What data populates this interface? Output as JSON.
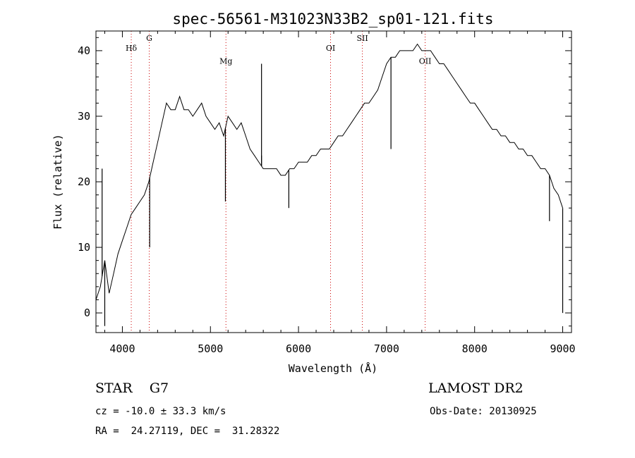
{
  "chart_data": {
    "type": "line",
    "title": "spec-56561-M31023N33B2_sp01-121.fits",
    "xlabel": "Wavelength (Å)",
    "ylabel": "Flux (relative)",
    "xlim": [
      3700,
      9100
    ],
    "ylim": [
      -3,
      43
    ],
    "xticks": [
      4000,
      5000,
      6000,
      7000,
      8000,
      9000
    ],
    "yticks": [
      0,
      10,
      20,
      30,
      40
    ],
    "grid": false,
    "series": [
      {
        "x": [
          3700,
          3750,
          3800,
          3850,
          3900,
          3950,
          4000,
          4050,
          4100,
          4150,
          4200,
          4250,
          4300,
          4350,
          4400,
          4450,
          4500,
          4550,
          4600,
          4650,
          4700,
          4750,
          4800,
          4850,
          4900,
          4950,
          5000,
          5050,
          5100,
          5150,
          5200,
          5250,
          5300,
          5350,
          5400,
          5450,
          5500,
          5550,
          5600,
          5650,
          5700,
          5750,
          5800,
          5850,
          5900,
          5950,
          6000,
          6050,
          6100,
          6150,
          6200,
          6250,
          6300,
          6350,
          6400,
          6450,
          6500,
          6550,
          6600,
          6650,
          6700,
          6750,
          6800,
          6850,
          6900,
          6950,
          7000,
          7050,
          7100,
          7150,
          7200,
          7250,
          7300,
          7350,
          7400,
          7450,
          7500,
          7550,
          7600,
          7650,
          7700,
          7750,
          7800,
          7850,
          7900,
          7950,
          8000,
          8050,
          8100,
          8150,
          8200,
          8250,
          8300,
          8350,
          8400,
          8450,
          8500,
          8550,
          8600,
          8650,
          8700,
          8750,
          8800,
          8850,
          8900,
          8950,
          9000
        ],
        "y": [
          2,
          4,
          8,
          3,
          6,
          9,
          11,
          13,
          15,
          16,
          17,
          18,
          20,
          23,
          26,
          29,
          32,
          31,
          31,
          33,
          31,
          31,
          30,
          31,
          32,
          30,
          29,
          28,
          29,
          27,
          30,
          29,
          28,
          29,
          27,
          25,
          24,
          23,
          22,
          22,
          22,
          22,
          21,
          21,
          22,
          22,
          23,
          23,
          23,
          24,
          24,
          25,
          25,
          25,
          26,
          27,
          27,
          28,
          29,
          30,
          31,
          32,
          32,
          33,
          34,
          36,
          38,
          39,
          39,
          40,
          40,
          40,
          40,
          41,
          40,
          40,
          40,
          39,
          38,
          38,
          37,
          36,
          35,
          34,
          33,
          32,
          32,
          31,
          30,
          29,
          28,
          28,
          27,
          27,
          26,
          26,
          25,
          25,
          24,
          24,
          23,
          22,
          22,
          21,
          19,
          18,
          16
        ]
      }
    ],
    "spikes": [
      {
        "x": 3770,
        "y": 22
      },
      {
        "x": 3800,
        "y": -2
      },
      {
        "x": 4310,
        "y": 10
      },
      {
        "x": 5170,
        "y": 17
      },
      {
        "x": 5580,
        "y": 38
      },
      {
        "x": 5580,
        "y": 24
      },
      {
        "x": 5890,
        "y": 16
      },
      {
        "x": 7050,
        "y": 25
      },
      {
        "x": 8850,
        "y": 14
      },
      {
        "x": 9000,
        "y": 0
      }
    ],
    "line_markers": [
      {
        "label": "Hδ",
        "x": 4101,
        "label_y": 40
      },
      {
        "label": "G",
        "x": 4305,
        "label_y": 41.5
      },
      {
        "label": "Mg",
        "x": 5176,
        "label_y": 38
      },
      {
        "label": "OI",
        "x": 6364,
        "label_y": 40
      },
      {
        "label": "SII",
        "x": 6725,
        "label_y": 41.5
      },
      {
        "label": "OII",
        "x": 7438,
        "label_y": 38
      }
    ]
  },
  "info": {
    "class_text": "STAR    G7",
    "cz_text": "cz = -10.0 ± 33.3 km/s",
    "coords_text": "RA =  24.27119, DEC =  31.28322",
    "survey_text": "LAMOST DR2",
    "obsdate_text": "Obs-Date: 20130925"
  },
  "colors": {
    "marker_line": "#cc0000",
    "spectrum": "#000000"
  }
}
